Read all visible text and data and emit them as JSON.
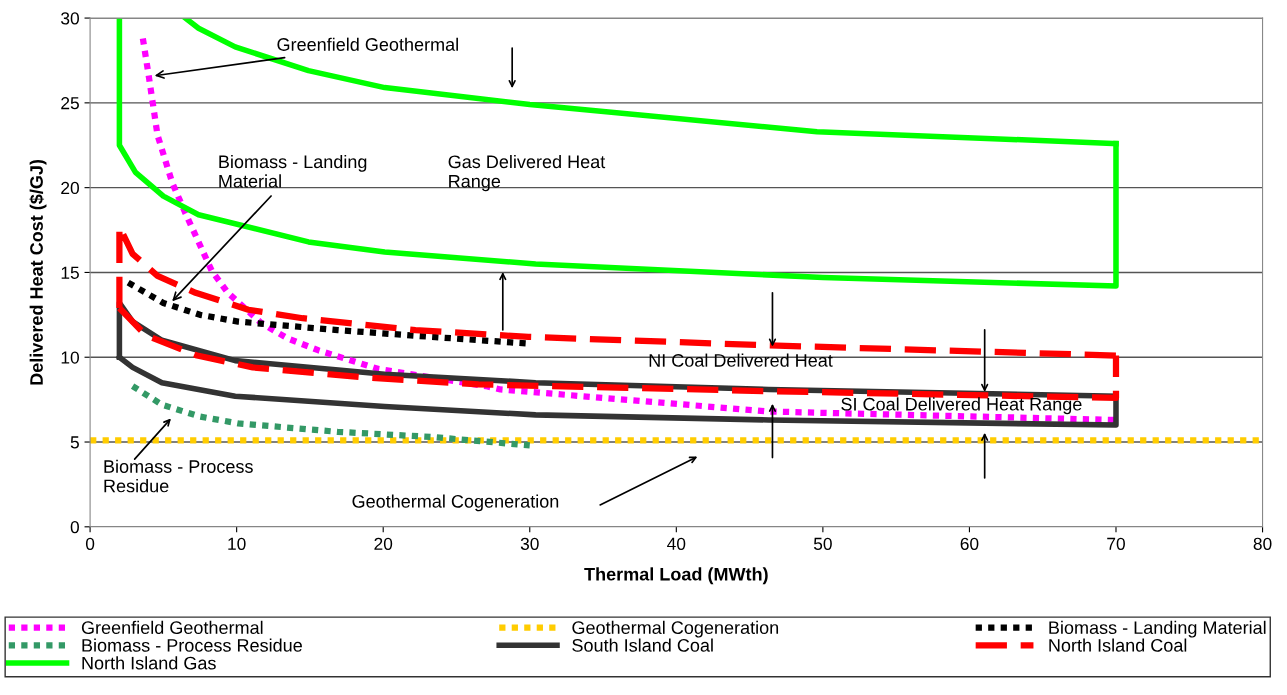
{
  "chart_data": {
    "type": "line",
    "xlabel": "Thermal Load (MWth)",
    "ylabel": "Delivered Heat Cost ($/GJ)",
    "xlim": [
      0,
      80
    ],
    "xticks": [
      0,
      10,
      20,
      30,
      40,
      50,
      60,
      70,
      80
    ],
    "ylim": [
      0,
      30
    ],
    "yticks": [
      0,
      5,
      10,
      15,
      20,
      25,
      30
    ],
    "grid": "y",
    "legend": "bottom",
    "series": [
      {
        "name": "Greenfield Geothermal",
        "color": "#ff00ff",
        "line_style": "dotted",
        "x": [
          3.6,
          4.0,
          4.6,
          5.6,
          6.5,
          8.3,
          9.4,
          11.7,
          13.5,
          15.6,
          19.7,
          27,
          28,
          46.3,
          70
        ],
        "values": [
          28.8,
          26.6,
          23.1,
          20.3,
          18.5,
          15.1,
          13.8,
          12.0,
          11.1,
          10.4,
          9.3,
          8.3,
          8.1,
          6.8,
          6.3
        ]
      },
      {
        "name": "Geothermal Cogeneration",
        "color": "#ffcc00",
        "line_style": "dotted",
        "x": [
          0,
          80
        ],
        "values": [
          5.1,
          5.1
        ]
      },
      {
        "name": "Biomass - Landing Material",
        "color": "#000000",
        "line_style": "dotted",
        "x": [
          2.6,
          5.0,
          7.5,
          10.1,
          16.9,
          23.3,
          30
        ],
        "values": [
          14.4,
          13.2,
          12.5,
          12.1,
          11.6,
          11.2,
          10.8
        ]
      },
      {
        "name": "Biomass - Process Residue",
        "color": "#339966",
        "line_style": "dotted",
        "x": [
          2.9,
          4.9,
          7.5,
          10.1,
          16.9,
          23.3,
          30
        ],
        "values": [
          8.3,
          7.2,
          6.5,
          6.1,
          5.6,
          5.3,
          4.8
        ]
      },
      {
        "name": "South Island Coal",
        "color": "#333333",
        "line_style": "solid",
        "x": [
          2,
          2,
          2.9,
          4.9,
          9.9,
          20.1,
          30.4,
          46.3,
          70
        ],
        "values": [
          10.0,
          13.2,
          12.1,
          11.0,
          9.8,
          9.0,
          8.5,
          8.1,
          7.7
        ]
      },
      {
        "color": "#333333",
        "line_style": "solid",
        "x": [
          2,
          2.9,
          4.9,
          9.9,
          20.1,
          30.4,
          46.3,
          70,
          70
        ],
        "values": [
          10.0,
          9.4,
          8.5,
          7.7,
          7.1,
          6.6,
          6.3,
          6.0,
          7.7
        ]
      },
      {
        "name": "North Island Coal",
        "color": "#ff0000",
        "line_style": "dashed",
        "x": [
          2,
          2,
          2.9,
          4.6,
          7.2,
          10.8,
          14.5,
          22.2,
          29.9,
          46.3,
          70
        ],
        "values": [
          12.9,
          17.7,
          16.1,
          14.8,
          13.8,
          12.8,
          12.3,
          11.6,
          11.2,
          10.7,
          10.1
        ]
      },
      {
        "color": "#ff0000",
        "line_style": "dashed",
        "x": [
          2,
          3.8,
          7.3,
          11.1,
          18.8,
          26.5,
          46.3,
          70,
          70
        ],
        "values": [
          12.9,
          11.3,
          10.1,
          9.4,
          8.8,
          8.4,
          8.0,
          7.6,
          10.1
        ]
      },
      {
        "name": "North Island Gas",
        "color": "#00ff00",
        "line_style": "solid",
        "x": [
          2,
          2,
          3.1,
          5.0,
          7.4,
          14.9,
          20.1,
          30.4,
          50,
          70,
          70
        ],
        "values": [
          30,
          22.5,
          20.9,
          19.5,
          18.4,
          16.8,
          16.2,
          15.5,
          14.7,
          14.2,
          22.6
        ]
      },
      {
        "color": "#00ff00",
        "line_style": "solid",
        "x": [
          6.5,
          7.4,
          9.9,
          14.9,
          20.1,
          30,
          49.6,
          70
        ],
        "values": [
          30,
          29.4,
          28.3,
          26.9,
          25.9,
          24.9,
          23.3,
          22.6
        ]
      }
    ],
    "annotations": [
      {
        "text": "Greenfield Geothermal",
        "x": 4.4,
        "y": 26.6
      },
      {
        "text": "Biomass - Landing\nMaterial",
        "x": 5.6,
        "y": 13.3
      },
      "Gas Delivered Heat\nRange",
      "NI Coal Delivered Heat",
      "SI Coal Delivered Heat Range",
      "Biomass - Process\nResidue",
      "Geothermal Cogeneration"
    ]
  }
}
